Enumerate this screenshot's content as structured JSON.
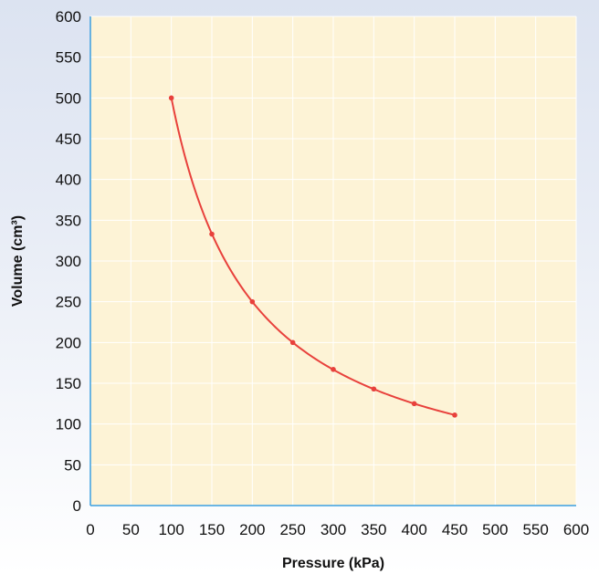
{
  "chart_data": {
    "type": "line",
    "title": "",
    "xlabel": "Pressure (kPa)",
    "ylabel": "Volume (cm³)",
    "xlim": [
      0,
      600
    ],
    "ylim": [
      0,
      600
    ],
    "x_ticks": [
      "0",
      "50",
      "100",
      "150",
      "200",
      "250",
      "300",
      "350",
      "400",
      "450",
      "500",
      "550",
      "600"
    ],
    "y_ticks": [
      "0",
      "50",
      "100",
      "150",
      "200",
      "250",
      "300",
      "350",
      "400",
      "450",
      "500",
      "550",
      "600"
    ],
    "grid": true,
    "series": [
      {
        "x": [
          100,
          150,
          200,
          250,
          300,
          350,
          400,
          450
        ],
        "y": [
          500,
          333,
          250,
          200,
          167,
          143,
          125,
          111
        ]
      }
    ],
    "colors": {
      "plot_background": "#fdf3d6",
      "grid": "#ffffff",
      "axis": "#3b9fe0",
      "line": "#e8413c"
    }
  }
}
